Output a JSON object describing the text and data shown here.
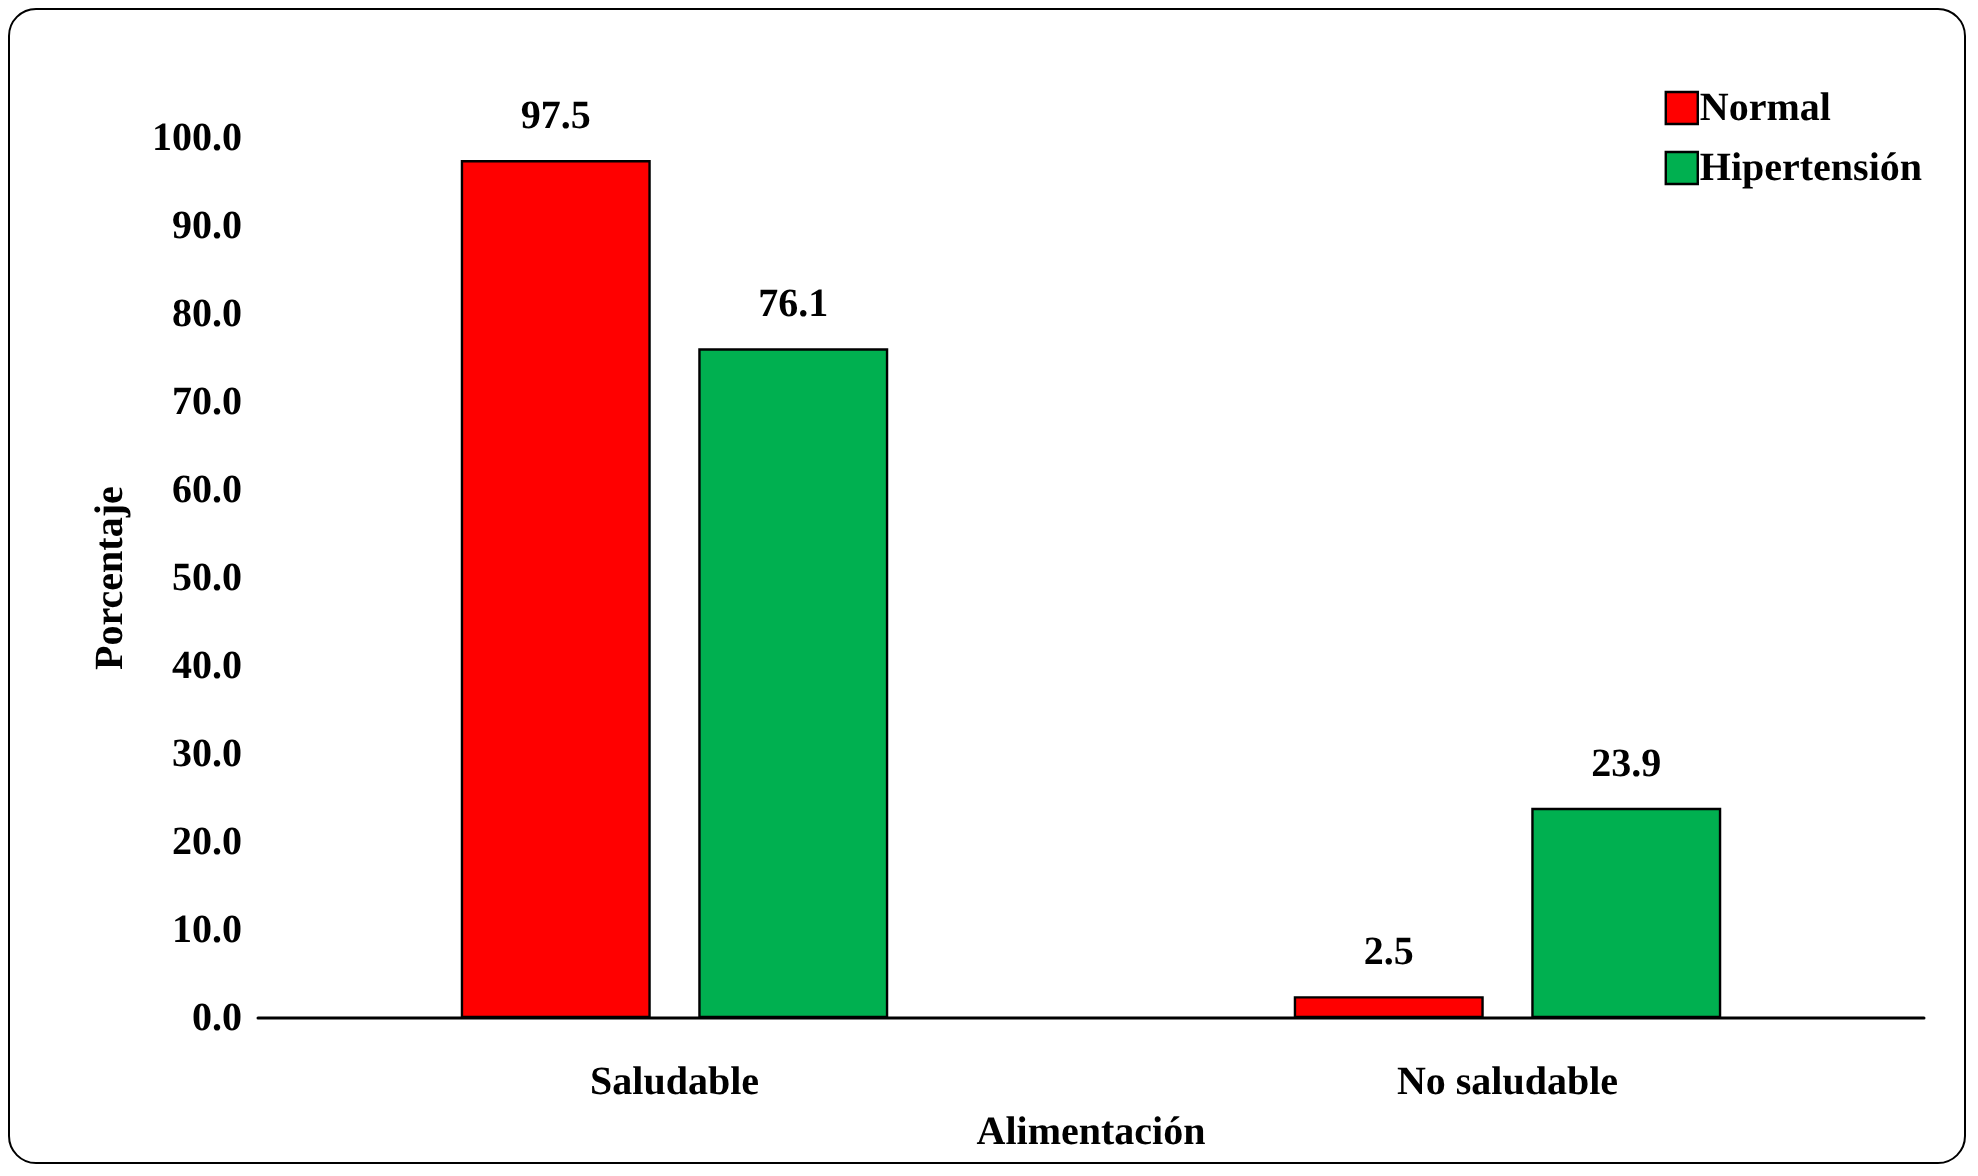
{
  "chart_data": {
    "type": "bar",
    "xlabel": "Alimentación",
    "ylabel": "Porcentaje",
    "categories": [
      "Saludable",
      "No saludable"
    ],
    "series": [
      {
        "name": "Normal",
        "color": "#ff0000",
        "values": [
          97.5,
          2.5
        ]
      },
      {
        "name": "Hipertensión",
        "color": "#00b050",
        "values": [
          76.1,
          23.9
        ]
      }
    ],
    "ylim": [
      0,
      100
    ],
    "yticks": [
      {
        "value": 0,
        "label": "0.0"
      },
      {
        "value": 10,
        "label": "10.0"
      },
      {
        "value": 20,
        "label": "20.0"
      },
      {
        "value": 30,
        "label": "30.0"
      },
      {
        "value": 40,
        "label": "40.0"
      },
      {
        "value": 50,
        "label": "50.0"
      },
      {
        "value": 60,
        "label": "60.0"
      },
      {
        "value": 70,
        "label": "70.0"
      },
      {
        "value": 80,
        "label": "80.0"
      },
      {
        "value": 90,
        "label": "90.0"
      },
      {
        "value": 100,
        "label": "100.0"
      }
    ],
    "data_labels": true,
    "legend": "top right",
    "grid": false
  }
}
